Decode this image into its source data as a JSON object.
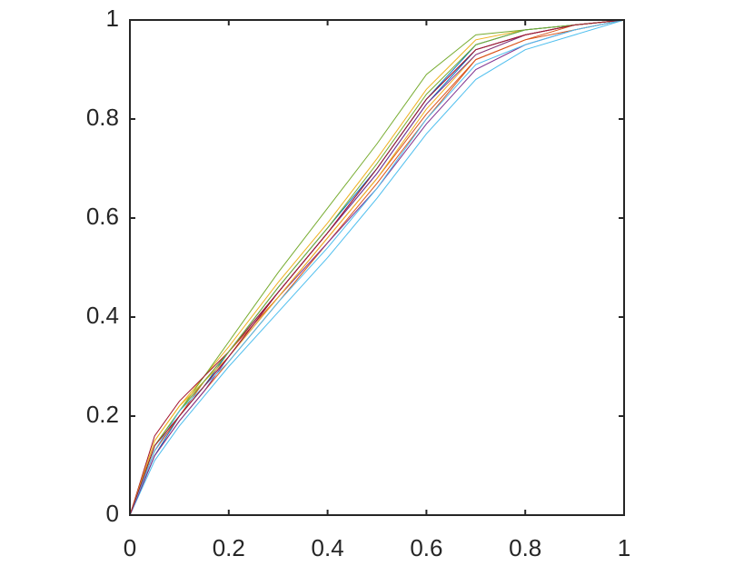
{
  "chart_data": {
    "type": "line",
    "x": [
      0,
      0.05,
      0.1,
      0.15,
      0.2,
      0.3,
      0.4,
      0.5,
      0.6,
      0.7,
      0.8,
      0.9,
      1
    ],
    "series": [
      {
        "color": "#0072BD",
        "values": [
          0,
          0.14,
          0.21,
          0.27,
          0.33,
          0.45,
          0.57,
          0.69,
          0.83,
          0.94,
          0.97,
          0.99,
          1
        ]
      },
      {
        "color": "#D95319",
        "values": [
          0,
          0.12,
          0.19,
          0.25,
          0.31,
          0.43,
          0.55,
          0.67,
          0.8,
          0.92,
          0.96,
          0.99,
          1
        ]
      },
      {
        "color": "#EDB120",
        "values": [
          0,
          0.15,
          0.22,
          0.28,
          0.34,
          0.47,
          0.59,
          0.72,
          0.86,
          0.96,
          0.98,
          0.99,
          1
        ]
      },
      {
        "color": "#7E2F8E",
        "values": [
          0,
          0.13,
          0.2,
          0.26,
          0.32,
          0.44,
          0.55,
          0.66,
          0.79,
          0.9,
          0.95,
          0.98,
          1
        ]
      },
      {
        "color": "#77AC30",
        "values": [
          0,
          0.14,
          0.21,
          0.28,
          0.35,
          0.49,
          0.62,
          0.75,
          0.89,
          0.97,
          0.98,
          0.99,
          1
        ]
      },
      {
        "color": "#4DBEEE",
        "values": [
          0,
          0.11,
          0.18,
          0.24,
          0.3,
          0.41,
          0.52,
          0.64,
          0.77,
          0.88,
          0.94,
          0.97,
          1
        ]
      },
      {
        "color": "#A2142F",
        "values": [
          0,
          0.16,
          0.23,
          0.28,
          0.33,
          0.45,
          0.57,
          0.7,
          0.84,
          0.94,
          0.97,
          0.99,
          1
        ]
      },
      {
        "color": "#0072BD",
        "values": [
          0,
          0.12,
          0.2,
          0.26,
          0.33,
          0.46,
          0.58,
          0.7,
          0.84,
          0.95,
          0.98,
          0.99,
          1
        ]
      },
      {
        "color": "#D95319",
        "values": [
          0,
          0.13,
          0.2,
          0.27,
          0.33,
          0.44,
          0.56,
          0.68,
          0.81,
          0.92,
          0.96,
          0.98,
          1
        ]
      },
      {
        "color": "#EDB120",
        "values": [
          0,
          0.15,
          0.22,
          0.27,
          0.32,
          0.44,
          0.56,
          0.68,
          0.82,
          0.93,
          0.97,
          0.99,
          1
        ]
      },
      {
        "color": "#7E2F8E",
        "values": [
          0,
          0.12,
          0.19,
          0.25,
          0.32,
          0.45,
          0.57,
          0.69,
          0.83,
          0.93,
          0.97,
          0.99,
          1
        ]
      },
      {
        "color": "#77AC30",
        "values": [
          0,
          0.14,
          0.21,
          0.27,
          0.33,
          0.46,
          0.58,
          0.71,
          0.85,
          0.95,
          0.98,
          0.99,
          1
        ]
      },
      {
        "color": "#4DBEEE",
        "values": [
          0,
          0.13,
          0.21,
          0.26,
          0.31,
          0.43,
          0.54,
          0.66,
          0.8,
          0.91,
          0.95,
          0.98,
          1
        ]
      },
      {
        "color": "#A2142F",
        "values": [
          0,
          0.14,
          0.2,
          0.26,
          0.32,
          0.45,
          0.57,
          0.7,
          0.84,
          0.94,
          0.97,
          0.99,
          1
        ]
      }
    ],
    "xlim": [
      0,
      1
    ],
    "ylim": [
      0,
      1
    ],
    "xticks": [
      0,
      0.2,
      0.4,
      0.6,
      0.8,
      1
    ],
    "yticks": [
      0,
      0.2,
      0.4,
      0.6,
      0.8,
      1
    ],
    "grid": false
  }
}
